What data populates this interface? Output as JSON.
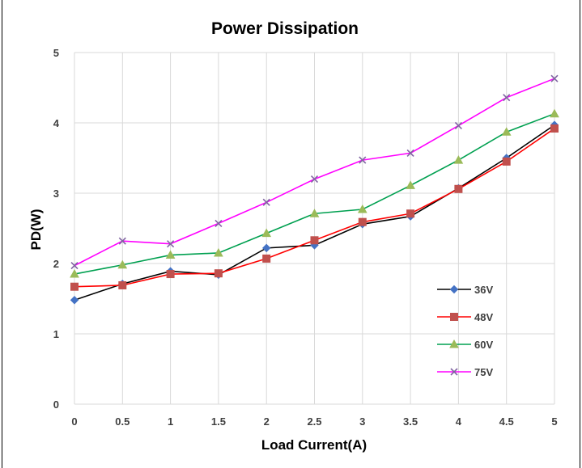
{
  "chart_data": {
    "type": "line",
    "title": "Power Dissipation",
    "xlabel": "Load Current(A)",
    "ylabel": "PD(W)",
    "xlim": [
      0,
      5
    ],
    "ylim": [
      0,
      5
    ],
    "x": [
      0,
      0.5,
      1,
      1.5,
      2,
      2.5,
      3,
      3.5,
      4,
      4.5,
      5
    ],
    "x_tick_labels": [
      "0",
      "0.5",
      "1",
      "1.5",
      "2",
      "2.5",
      "3",
      "3.5",
      "4",
      "4.5",
      "5"
    ],
    "y_tick_labels": [
      "0",
      "1",
      "2",
      "3",
      "4",
      "5"
    ],
    "grid": true,
    "legend_position": "lower-right",
    "series": [
      {
        "name": "36V",
        "color": "#000000",
        "marker_color": "#4472C4",
        "marker": "diamond",
        "values": [
          1.48,
          1.71,
          1.89,
          1.84,
          2.22,
          2.26,
          2.56,
          2.67,
          3.07,
          3.5,
          3.97
        ]
      },
      {
        "name": "48V",
        "color": "#FF0000",
        "marker_color": "#C0504D",
        "marker": "square",
        "values": [
          1.67,
          1.69,
          1.85,
          1.86,
          2.07,
          2.33,
          2.59,
          2.71,
          3.06,
          3.45,
          3.92
        ]
      },
      {
        "name": "60V",
        "color": "#00A050",
        "marker_color": "#9BBB59",
        "marker": "triangle",
        "values": [
          1.85,
          1.98,
          2.12,
          2.15,
          2.43,
          2.71,
          2.77,
          3.11,
          3.47,
          3.87,
          4.13
        ]
      },
      {
        "name": "75V",
        "color": "#FF00FF",
        "marker_color": "#8064A2",
        "marker": "cross",
        "values": [
          1.97,
          2.32,
          2.28,
          2.57,
          2.87,
          3.2,
          3.47,
          3.57,
          3.96,
          4.36,
          4.63
        ]
      }
    ]
  }
}
